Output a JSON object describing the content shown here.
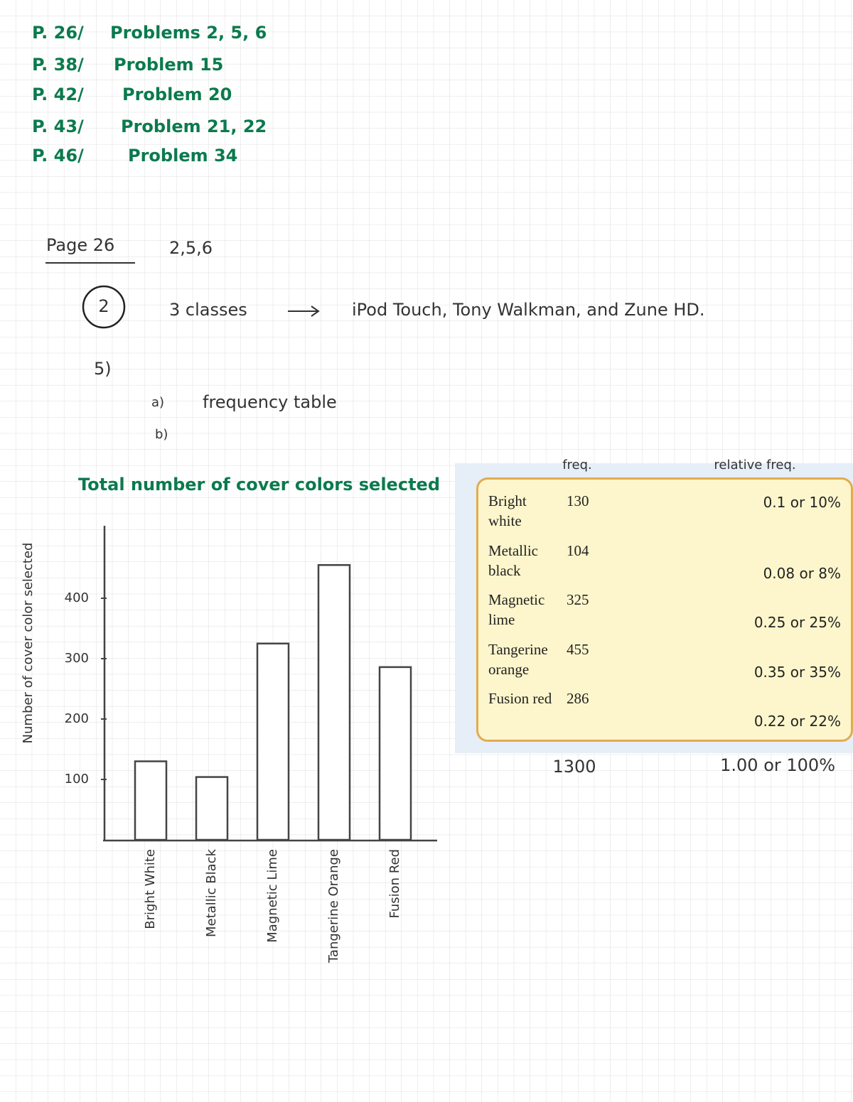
{
  "assignments": [
    {
      "page": "P. 26/",
      "problems": "Problems 2, 5, 6"
    },
    {
      "page": "P. 38/",
      "problems": "Problem 15"
    },
    {
      "page": "P. 42/",
      "problems": "Problem 20"
    },
    {
      "page": "P. 43/",
      "problems": "Problem 21, 22"
    },
    {
      "page": "P. 46/",
      "problems": "Problem 34"
    }
  ],
  "heading": {
    "page": "Page 26",
    "problems": "2,5,6"
  },
  "q2": {
    "number": "2",
    "lead": "3 classes",
    "answer": "iPod Touch, Tony Walkman, and Zune HD."
  },
  "q5": {
    "number": "5)",
    "a": "a)",
    "a_text": "frequency table",
    "b": "b)"
  },
  "chart_data": {
    "type": "bar",
    "title": "Total number of cover colors selected",
    "y_label": "Number of cover color selected",
    "categories": [
      "Bright White",
      "Metallic Black",
      "Magnetic Lime",
      "Tangerine Orange",
      "Fusion Red"
    ],
    "values": [
      130,
      104,
      325,
      455,
      286
    ],
    "color": "#ffffff",
    "ylim": [
      0,
      520
    ],
    "yticks": [
      100,
      200,
      300,
      400
    ]
  },
  "table": {
    "header": {
      "freq": "freq.",
      "relative": "relative freq."
    },
    "rows": [
      [
        "Bright white",
        "130",
        "0.1 or 10%"
      ],
      [
        "Metallic black",
        "104",
        "0.08 or 8%"
      ],
      [
        "Magnetic lime",
        "325",
        "0.25 or 25%"
      ],
      [
        "Tangerine orange",
        "455",
        "0.35 or 35%"
      ],
      [
        "Fusion red",
        "286",
        "0.22 or 22%"
      ]
    ],
    "total": {
      "freq": "1300",
      "relative": "1.00 or 100%"
    }
  }
}
